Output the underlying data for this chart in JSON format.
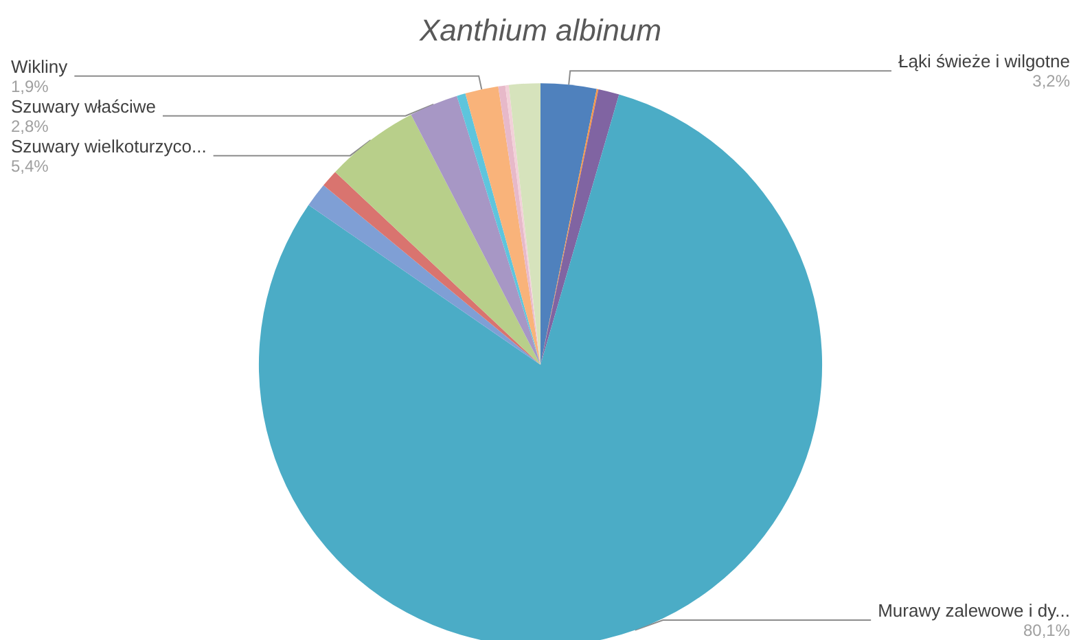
{
  "chart_data": {
    "type": "pie",
    "title": "Xanthium albinum",
    "categories": [
      "Łąki świeże i wilgotne",
      null,
      null,
      "Murawy zalewowe i dy...",
      null,
      null,
      "Szuwary wielkoturzyco...",
      "Szuwary właściwe",
      null,
      "Wikliny",
      null,
      null,
      null
    ],
    "values": [
      3.2,
      0.1,
      1.2,
      80.1,
      1.4,
      1.0,
      5.4,
      2.8,
      0.5,
      1.9,
      0.4,
      0.2,
      1.8
    ],
    "colors": [
      "#4f81bd",
      "#f79646",
      "#8064a2",
      "#4bacc6",
      "#7f9fd5",
      "#d9746f",
      "#b8cf8a",
      "#a797c5",
      "#5ec5dd",
      "#f9b37a",
      "#e7b9c9",
      "#f2d0d8",
      "#d6e3bc"
    ],
    "value_labels": [
      "3,2%",
      null,
      null,
      "80,1%",
      null,
      null,
      "5,4%",
      "2,8%",
      null,
      "1,9%",
      null,
      null,
      null
    ],
    "legend": false
  }
}
